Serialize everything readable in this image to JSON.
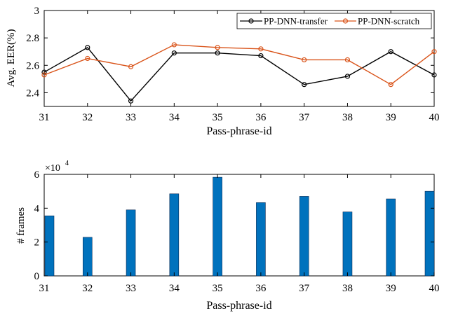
{
  "chart_data": [
    {
      "type": "line",
      "categories": [
        "31",
        "32",
        "33",
        "34",
        "35",
        "36",
        "37",
        "38",
        "39",
        "40"
      ],
      "ylabel": "Avg. EER(%)",
      "xlabel": "Pass-phrase-id",
      "ylim": [
        2.3,
        3.0
      ],
      "yticks": [
        "2.4",
        "2.6",
        "2.8",
        "3"
      ],
      "ytick_values": [
        2.4,
        2.6,
        2.8,
        3.0
      ],
      "legend_position": "top-right",
      "grid": false,
      "series": [
        {
          "name": "PP-DNN-transfer",
          "color": "#000000",
          "values": [
            2.55,
            2.73,
            2.34,
            2.69,
            2.69,
            2.67,
            2.46,
            2.52,
            2.7,
            2.53
          ]
        },
        {
          "name": "PP-DNN-scratch",
          "color": "#d95319",
          "values": [
            2.53,
            2.65,
            2.59,
            2.75,
            2.73,
            2.72,
            2.64,
            2.64,
            2.46,
            2.7
          ]
        }
      ]
    },
    {
      "type": "bar",
      "categories": [
        "31",
        "32",
        "33",
        "34",
        "35",
        "36",
        "37",
        "38",
        "39",
        "40"
      ],
      "ylabel": "# frames",
      "xlabel": "Pass-phrase-id",
      "scale_label": "×10",
      "scale_exp": "4",
      "ylim": [
        0,
        6
      ],
      "yticks": [
        "0",
        "2",
        "4",
        "6"
      ],
      "ytick_values": [
        0,
        2,
        4,
        6
      ],
      "grid": false,
      "bar_color": "#0072bd",
      "values": [
        3.55,
        2.28,
        3.9,
        4.85,
        5.83,
        4.33,
        4.7,
        3.78,
        4.55,
        5.0
      ]
    }
  ]
}
